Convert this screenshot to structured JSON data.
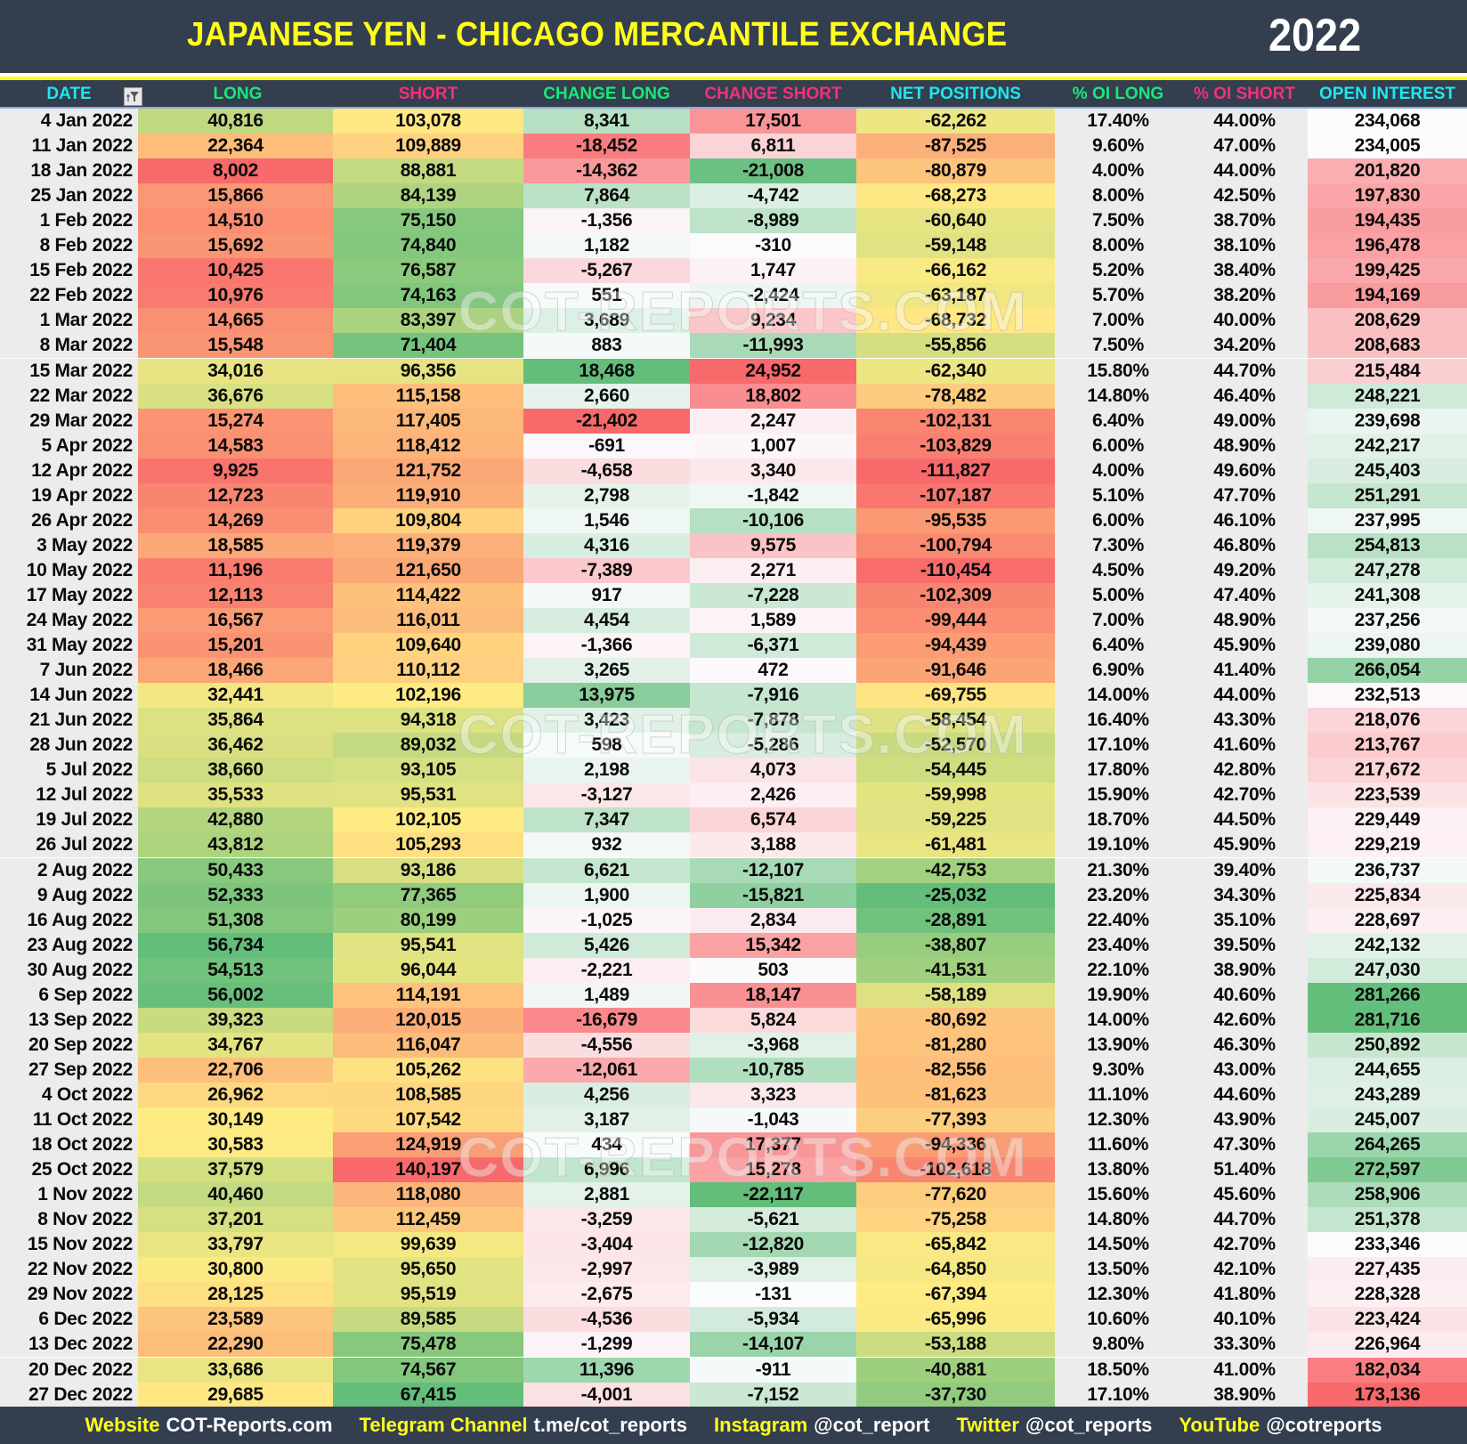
{
  "header": {
    "title": "JAPANESE YEN - CHICAGO MERCANTILE EXCHANGE",
    "year": "2022"
  },
  "columns": [
    {
      "key": "date",
      "label": "DATE",
      "color": "#1ee8f0"
    },
    {
      "key": "long",
      "label": "LONG",
      "color": "#18e878"
    },
    {
      "key": "short",
      "label": "SHORT",
      "color": "#f0327a"
    },
    {
      "key": "change_long",
      "label": "CHANGE LONG",
      "color": "#18e878"
    },
    {
      "key": "change_short",
      "label": "CHANGE SHORT",
      "color": "#f0327a"
    },
    {
      "key": "net_positions",
      "label": "NET POSITIONS",
      "color": "#1ee8f0"
    },
    {
      "key": "pct_oi_long",
      "label": "% OI LONG",
      "color": "#18e878"
    },
    {
      "key": "pct_oi_short",
      "label": "% OI SHORT",
      "color": "#f0327a"
    },
    {
      "key": "open_interest",
      "label": "OPEN INTEREST",
      "color": "#1ee8f0"
    }
  ],
  "filter_icon": "filter-sort-icon",
  "watermark": "COT-REPORTS.COM",
  "rows": [
    [
      "4 Jan 2022",
      "40,816",
      "103,078",
      "8,341",
      "17,501",
      "-62,262",
      "17.40%",
      "44.00%",
      "234,068"
    ],
    [
      "11 Jan 2022",
      "22,364",
      "109,889",
      "-18,452",
      "6,811",
      "-87,525",
      "9.60%",
      "47.00%",
      "234,005"
    ],
    [
      "18 Jan 2022",
      "8,002",
      "88,881",
      "-14,362",
      "-21,008",
      "-80,879",
      "4.00%",
      "44.00%",
      "201,820"
    ],
    [
      "25 Jan 2022",
      "15,866",
      "84,139",
      "7,864",
      "-4,742",
      "-68,273",
      "8.00%",
      "42.50%",
      "197,830"
    ],
    [
      "1 Feb 2022",
      "14,510",
      "75,150",
      "-1,356",
      "-8,989",
      "-60,640",
      "7.50%",
      "38.70%",
      "194,435"
    ],
    [
      "8 Feb 2022",
      "15,692",
      "74,840",
      "1,182",
      "-310",
      "-59,148",
      "8.00%",
      "38.10%",
      "196,478"
    ],
    [
      "15 Feb 2022",
      "10,425",
      "76,587",
      "-5,267",
      "1,747",
      "-66,162",
      "5.20%",
      "38.40%",
      "199,425"
    ],
    [
      "22 Feb 2022",
      "10,976",
      "74,163",
      "551",
      "-2,424",
      "-63,187",
      "5.70%",
      "38.20%",
      "194,169"
    ],
    [
      "1 Mar 2022",
      "14,665",
      "83,397",
      "3,689",
      "9,234",
      "-68,732",
      "7.00%",
      "40.00%",
      "208,629"
    ],
    [
      "8 Mar 2022",
      "15,548",
      "71,404",
      "883",
      "-11,993",
      "-55,856",
      "7.50%",
      "34.20%",
      "208,683"
    ],
    [
      "15 Mar 2022",
      "34,016",
      "96,356",
      "18,468",
      "24,952",
      "-62,340",
      "15.80%",
      "44.70%",
      "215,484"
    ],
    [
      "22 Mar 2022",
      "36,676",
      "115,158",
      "2,660",
      "18,802",
      "-78,482",
      "14.80%",
      "46.40%",
      "248,221"
    ],
    [
      "29 Mar 2022",
      "15,274",
      "117,405",
      "-21,402",
      "2,247",
      "-102,131",
      "6.40%",
      "49.00%",
      "239,698"
    ],
    [
      "5 Apr 2022",
      "14,583",
      "118,412",
      "-691",
      "1,007",
      "-103,829",
      "6.00%",
      "48.90%",
      "242,217"
    ],
    [
      "12 Apr 2022",
      "9,925",
      "121,752",
      "-4,658",
      "3,340",
      "-111,827",
      "4.00%",
      "49.60%",
      "245,403"
    ],
    [
      "19 Apr 2022",
      "12,723",
      "119,910",
      "2,798",
      "-1,842",
      "-107,187",
      "5.10%",
      "47.70%",
      "251,291"
    ],
    [
      "26 Apr 2022",
      "14,269",
      "109,804",
      "1,546",
      "-10,106",
      "-95,535",
      "6.00%",
      "46.10%",
      "237,995"
    ],
    [
      "3 May 2022",
      "18,585",
      "119,379",
      "4,316",
      "9,575",
      "-100,794",
      "7.30%",
      "46.80%",
      "254,813"
    ],
    [
      "10 May 2022",
      "11,196",
      "121,650",
      "-7,389",
      "2,271",
      "-110,454",
      "4.50%",
      "49.20%",
      "247,278"
    ],
    [
      "17 May 2022",
      "12,113",
      "114,422",
      "917",
      "-7,228",
      "-102,309",
      "5.00%",
      "47.40%",
      "241,308"
    ],
    [
      "24 May 2022",
      "16,567",
      "116,011",
      "4,454",
      "1,589",
      "-99,444",
      "7.00%",
      "48.90%",
      "237,256"
    ],
    [
      "31 May 2022",
      "15,201",
      "109,640",
      "-1,366",
      "-6,371",
      "-94,439",
      "6.40%",
      "45.90%",
      "239,080"
    ],
    [
      "7 Jun 2022",
      "18,466",
      "110,112",
      "3,265",
      "472",
      "-91,646",
      "6.90%",
      "41.40%",
      "266,054"
    ],
    [
      "14 Jun 2022",
      "32,441",
      "102,196",
      "13,975",
      "-7,916",
      "-69,755",
      "14.00%",
      "44.00%",
      "232,513"
    ],
    [
      "21 Jun 2022",
      "35,864",
      "94,318",
      "3,423",
      "-7,878",
      "-58,454",
      "16.40%",
      "43.30%",
      "218,076"
    ],
    [
      "28 Jun 2022",
      "36,462",
      "89,032",
      "598",
      "-5,286",
      "-52,570",
      "17.10%",
      "41.60%",
      "213,767"
    ],
    [
      "5 Jul 2022",
      "38,660",
      "93,105",
      "2,198",
      "4,073",
      "-54,445",
      "17.80%",
      "42.80%",
      "217,672"
    ],
    [
      "12 Jul 2022",
      "35,533",
      "95,531",
      "-3,127",
      "2,426",
      "-59,998",
      "15.90%",
      "42.70%",
      "223,539"
    ],
    [
      "19 Jul 2022",
      "42,880",
      "102,105",
      "7,347",
      "6,574",
      "-59,225",
      "18.70%",
      "44.50%",
      "229,449"
    ],
    [
      "26 Jul 2022",
      "43,812",
      "105,293",
      "932",
      "3,188",
      "-61,481",
      "19.10%",
      "45.90%",
      "229,219"
    ],
    [
      "2 Aug 2022",
      "50,433",
      "93,186",
      "6,621",
      "-12,107",
      "-42,753",
      "21.30%",
      "39.40%",
      "236,737"
    ],
    [
      "9 Aug 2022",
      "52,333",
      "77,365",
      "1,900",
      "-15,821",
      "-25,032",
      "23.20%",
      "34.30%",
      "225,834"
    ],
    [
      "16 Aug 2022",
      "51,308",
      "80,199",
      "-1,025",
      "2,834",
      "-28,891",
      "22.40%",
      "35.10%",
      "228,697"
    ],
    [
      "23 Aug 2022",
      "56,734",
      "95,541",
      "5,426",
      "15,342",
      "-38,807",
      "23.40%",
      "39.50%",
      "242,132"
    ],
    [
      "30 Aug 2022",
      "54,513",
      "96,044",
      "-2,221",
      "503",
      "-41,531",
      "22.10%",
      "38.90%",
      "247,030"
    ],
    [
      "6 Sep 2022",
      "56,002",
      "114,191",
      "1,489",
      "18,147",
      "-58,189",
      "19.90%",
      "40.60%",
      "281,266"
    ],
    [
      "13 Sep 2022",
      "39,323",
      "120,015",
      "-16,679",
      "5,824",
      "-80,692",
      "14.00%",
      "42.60%",
      "281,716"
    ],
    [
      "20 Sep 2022",
      "34,767",
      "116,047",
      "-4,556",
      "-3,968",
      "-81,280",
      "13.90%",
      "46.30%",
      "250,892"
    ],
    [
      "27 Sep 2022",
      "22,706",
      "105,262",
      "-12,061",
      "-10,785",
      "-82,556",
      "9.30%",
      "43.00%",
      "244,655"
    ],
    [
      "4 Oct 2022",
      "26,962",
      "108,585",
      "4,256",
      "3,323",
      "-81,623",
      "11.10%",
      "44.60%",
      "243,289"
    ],
    [
      "11 Oct 2022",
      "30,149",
      "107,542",
      "3,187",
      "-1,043",
      "-77,393",
      "12.30%",
      "43.90%",
      "245,007"
    ],
    [
      "18 Oct 2022",
      "30,583",
      "124,919",
      "434",
      "17,377",
      "-94,336",
      "11.60%",
      "47.30%",
      "264,265"
    ],
    [
      "25 Oct 2022",
      "37,579",
      "140,197",
      "6,996",
      "15,278",
      "-102,618",
      "13.80%",
      "51.40%",
      "272,597"
    ],
    [
      "1 Nov 2022",
      "40,460",
      "118,080",
      "2,881",
      "-22,117",
      "-77,620",
      "15.60%",
      "45.60%",
      "258,906"
    ],
    [
      "8 Nov 2022",
      "37,201",
      "112,459",
      "-3,259",
      "-5,621",
      "-75,258",
      "14.80%",
      "44.70%",
      "251,378"
    ],
    [
      "15 Nov 2022",
      "33,797",
      "99,639",
      "-3,404",
      "-12,820",
      "-65,842",
      "14.50%",
      "42.70%",
      "233,346"
    ],
    [
      "22 Nov 2022",
      "30,800",
      "95,650",
      "-2,997",
      "-3,989",
      "-64,850",
      "13.50%",
      "42.10%",
      "227,435"
    ],
    [
      "29 Nov 2022",
      "28,125",
      "95,519",
      "-2,675",
      "-131",
      "-67,394",
      "12.30%",
      "41.80%",
      "228,328"
    ],
    [
      "6 Dec 2022",
      "23,589",
      "89,585",
      "-4,536",
      "-5,934",
      "-65,996",
      "10.60%",
      "40.10%",
      "223,424"
    ],
    [
      "13 Dec 2022",
      "22,290",
      "75,478",
      "-1,299",
      "-14,107",
      "-53,188",
      "9.80%",
      "33.30%",
      "226,964"
    ],
    [
      "20 Dec 2022",
      "33,686",
      "74,567",
      "11,396",
      "-911",
      "-40,881",
      "18.50%",
      "41.00%",
      "182,034"
    ],
    [
      "27 Dec 2022",
      "29,685",
      "67,415",
      "-4,001",
      "-7,152",
      "-37,730",
      "17.10%",
      "38.90%",
      "173,136"
    ]
  ],
  "colors": {
    "header_bg": "#333e4f",
    "title_yellow": "#ffff1a",
    "scale_red": "#f8696b",
    "scale_yellow": "#ffeb84",
    "scale_green": "#63be7b",
    "scale_white": "#fcfcff",
    "pct_bg": "#ececec"
  },
  "footer": [
    {
      "label": "Website",
      "value": "COT-Reports.com"
    },
    {
      "label": "Telegram Channel",
      "value": "t.me/cot_reports"
    },
    {
      "label": "Instagram",
      "value": "@cot_report"
    },
    {
      "label": "Twitter",
      "value": "@cot_reports"
    },
    {
      "label": "YouTube",
      "value": "@cotreports"
    }
  ]
}
